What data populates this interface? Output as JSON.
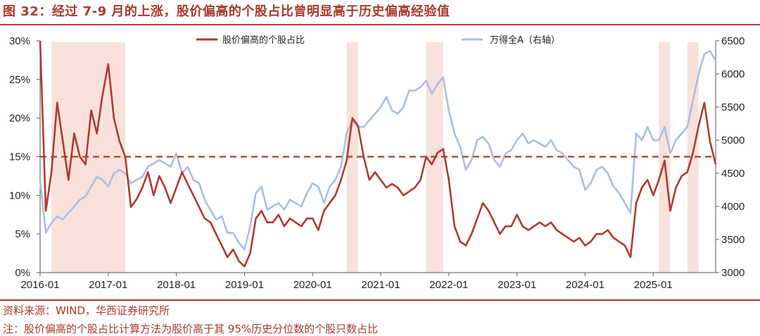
{
  "header": {
    "title": "图 32：经过 7-9 月的上涨，股价偏高的个股占比曾明显高于历史偏高经验值"
  },
  "footer": {
    "source": "资料来源：WIND，华西证券研究所",
    "note": "注：股价偏高的个股占比计算方法为股价高于其 95%历史分位数的个股只数占比"
  },
  "colors": {
    "primary_series": "#b03a2e",
    "secondary_series": "#a9bfe0",
    "shading": "#f8e1da",
    "threshold": "#b03a2e",
    "accent": "#b9382a"
  },
  "chart_data": {
    "type": "line",
    "title": "",
    "xlabel": "",
    "ylabel": "",
    "y_right_label": "",
    "x_ticks": [
      "2016-01",
      "2017-01",
      "2018-01",
      "2019-01",
      "2020-01",
      "2021-01",
      "2022-01",
      "2023-01",
      "2024-01",
      "2025-01"
    ],
    "xlim": [
      "2016-01",
      "2025-12"
    ],
    "y_left": {
      "range": [
        0,
        30
      ],
      "ticks": [
        "0%",
        "5%",
        "10%",
        "15%",
        "20%",
        "25%",
        "30%"
      ]
    },
    "y_right": {
      "range": [
        3000,
        6500
      ],
      "ticks": [
        "3000",
        "3500",
        "4000",
        "4500",
        "5000",
        "5500",
        "6000",
        "6500"
      ]
    },
    "grid": false,
    "legend": "top",
    "threshold": {
      "value": 15,
      "axis": "left",
      "style": "dashed"
    },
    "shaded_periods": [
      [
        "2016-03",
        "2017-04"
      ],
      [
        "2020-07",
        "2020-09"
      ],
      [
        "2021-09",
        "2021-12"
      ],
      [
        "2025-02",
        "2025-04"
      ],
      [
        "2025-07",
        "2025-09"
      ]
    ],
    "series": [
      {
        "name": "股价偏高的个股占比",
        "axis": "left",
        "x": [
          "2016-01",
          "2016-02",
          "2016-03",
          "2016-04",
          "2016-05",
          "2016-06",
          "2016-07",
          "2016-08",
          "2016-09",
          "2016-10",
          "2016-11",
          "2016-12",
          "2017-01",
          "2017-02",
          "2017-03",
          "2017-04",
          "2017-05",
          "2017-06",
          "2017-07",
          "2017-08",
          "2017-09",
          "2017-10",
          "2017-11",
          "2017-12",
          "2018-01",
          "2018-02",
          "2018-03",
          "2018-04",
          "2018-05",
          "2018-06",
          "2018-07",
          "2018-08",
          "2018-09",
          "2018-10",
          "2018-11",
          "2018-12",
          "2019-01",
          "2019-02",
          "2019-03",
          "2019-04",
          "2019-05",
          "2019-06",
          "2019-07",
          "2019-08",
          "2019-09",
          "2019-10",
          "2019-11",
          "2019-12",
          "2020-01",
          "2020-02",
          "2020-03",
          "2020-04",
          "2020-05",
          "2020-06",
          "2020-07",
          "2020-08",
          "2020-09",
          "2020-10",
          "2020-11",
          "2020-12",
          "2021-01",
          "2021-02",
          "2021-03",
          "2021-04",
          "2021-05",
          "2021-06",
          "2021-07",
          "2021-08",
          "2021-09",
          "2021-10",
          "2021-11",
          "2021-12",
          "2022-01",
          "2022-02",
          "2022-03",
          "2022-04",
          "2022-05",
          "2022-06",
          "2022-07",
          "2022-08",
          "2022-09",
          "2022-10",
          "2022-11",
          "2022-12",
          "2023-01",
          "2023-02",
          "2023-03",
          "2023-04",
          "2023-05",
          "2023-06",
          "2023-07",
          "2023-08",
          "2023-09",
          "2023-10",
          "2023-11",
          "2023-12",
          "2024-01",
          "2024-02",
          "2024-03",
          "2024-04",
          "2024-05",
          "2024-06",
          "2024-07",
          "2024-08",
          "2024-09",
          "2024-10",
          "2024-11",
          "2024-12",
          "2025-01",
          "2025-02",
          "2025-03",
          "2025-04",
          "2025-05",
          "2025-06",
          "2025-07",
          "2025-08",
          "2025-09",
          "2025-10",
          "2025-11",
          "2025-12"
        ],
        "values": [
          30.0,
          8.0,
          13.0,
          22.0,
          17.0,
          12.0,
          18.0,
          15.0,
          14.0,
          21.0,
          18.0,
          23.0,
          27.0,
          20.0,
          17.0,
          15.0,
          8.5,
          9.5,
          11.0,
          13.0,
          10.0,
          12.5,
          11.0,
          9.0,
          11.0,
          13.0,
          11.5,
          10.0,
          8.5,
          7.0,
          6.5,
          5.0,
          3.5,
          2.0,
          3.0,
          1.5,
          0.8,
          2.5,
          7.0,
          8.0,
          6.5,
          6.5,
          7.5,
          6.0,
          7.0,
          6.5,
          6.0,
          7.0,
          7.0,
          5.5,
          8.0,
          9.0,
          10.0,
          12.0,
          14.5,
          20.0,
          19.0,
          15.0,
          12.0,
          13.0,
          12.0,
          11.0,
          11.5,
          11.0,
          10.0,
          10.5,
          11.0,
          12.0,
          15.0,
          14.0,
          15.5,
          16.0,
          12.0,
          6.0,
          4.0,
          3.5,
          5.0,
          7.0,
          9.0,
          8.0,
          6.5,
          5.0,
          6.0,
          6.0,
          7.5,
          6.0,
          5.5,
          6.0,
          6.5,
          6.0,
          6.5,
          5.5,
          5.0,
          4.5,
          4.0,
          4.5,
          3.5,
          4.0,
          5.0,
          5.0,
          5.5,
          4.5,
          4.0,
          3.5,
          2.0,
          9.0,
          11.0,
          12.0,
          10.0,
          12.0,
          14.5,
          8.0,
          11.0,
          12.5,
          13.0,
          15.5,
          19.0,
          22.0,
          17.0,
          14.0
        ]
      },
      {
        "name": "万得全A（右轴）",
        "axis": "right",
        "x": [
          "2016-01",
          "2016-02",
          "2016-03",
          "2016-04",
          "2016-05",
          "2016-06",
          "2016-07",
          "2016-08",
          "2016-09",
          "2016-10",
          "2016-11",
          "2016-12",
          "2017-01",
          "2017-02",
          "2017-03",
          "2017-04",
          "2017-05",
          "2017-06",
          "2017-07",
          "2017-08",
          "2017-09",
          "2017-10",
          "2017-11",
          "2017-12",
          "2018-01",
          "2018-02",
          "2018-03",
          "2018-04",
          "2018-05",
          "2018-06",
          "2018-07",
          "2018-08",
          "2018-09",
          "2018-10",
          "2018-11",
          "2018-12",
          "2019-01",
          "2019-02",
          "2019-03",
          "2019-04",
          "2019-05",
          "2019-06",
          "2019-07",
          "2019-08",
          "2019-09",
          "2019-10",
          "2019-11",
          "2019-12",
          "2020-01",
          "2020-02",
          "2020-03",
          "2020-04",
          "2020-05",
          "2020-06",
          "2020-07",
          "2020-08",
          "2020-09",
          "2020-10",
          "2020-11",
          "2020-12",
          "2021-01",
          "2021-02",
          "2021-03",
          "2021-04",
          "2021-05",
          "2021-06",
          "2021-07",
          "2021-08",
          "2021-09",
          "2021-10",
          "2021-11",
          "2021-12",
          "2022-01",
          "2022-02",
          "2022-03",
          "2022-04",
          "2022-05",
          "2022-06",
          "2022-07",
          "2022-08",
          "2022-09",
          "2022-10",
          "2022-11",
          "2022-12",
          "2023-01",
          "2023-02",
          "2023-03",
          "2023-04",
          "2023-05",
          "2023-06",
          "2023-07",
          "2023-08",
          "2023-09",
          "2023-10",
          "2023-11",
          "2023-12",
          "2024-01",
          "2024-02",
          "2024-03",
          "2024-04",
          "2024-05",
          "2024-06",
          "2024-07",
          "2024-08",
          "2024-09",
          "2024-10",
          "2024-11",
          "2024-12",
          "2025-01",
          "2025-02",
          "2025-03",
          "2025-04",
          "2025-05",
          "2025-06",
          "2025-07",
          "2025-08",
          "2025-09",
          "2025-10",
          "2025-11",
          "2025-12"
        ],
        "values": [
          4400,
          3600,
          3750,
          3850,
          3800,
          3900,
          4000,
          4100,
          4150,
          4300,
          4450,
          4400,
          4300,
          4500,
          4550,
          4500,
          4350,
          4400,
          4450,
          4600,
          4650,
          4700,
          4650,
          4600,
          4800,
          4500,
          4600,
          4400,
          4350,
          4100,
          3950,
          3800,
          3850,
          3600,
          3600,
          3450,
          3350,
          3700,
          4200,
          4300,
          3950,
          4000,
          4050,
          3950,
          4100,
          4050,
          4000,
          4200,
          4350,
          4300,
          4050,
          4300,
          4400,
          4600,
          5100,
          5300,
          5200,
          5200,
          5300,
          5400,
          5500,
          5650,
          5450,
          5400,
          5500,
          5750,
          5750,
          5800,
          5900,
          5700,
          5850,
          5950,
          5450,
          5100,
          4900,
          4550,
          4700,
          5000,
          5050,
          4950,
          4700,
          4600,
          4800,
          4850,
          5000,
          5100,
          4950,
          5000,
          4950,
          4900,
          5000,
          4850,
          4800,
          4700,
          4600,
          4550,
          4250,
          4350,
          4550,
          4600,
          4500,
          4300,
          4200,
          4050,
          3900,
          5100,
          5000,
          5200,
          5000,
          5000,
          5200,
          4800,
          5000,
          5100,
          5200,
          5600,
          6000,
          6300,
          6350,
          6200
        ]
      }
    ]
  }
}
